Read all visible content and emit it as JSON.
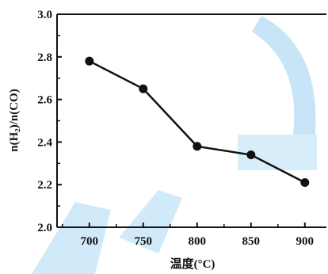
{
  "chart_data": {
    "type": "line",
    "title": "",
    "xlabel": "温度(°C)",
    "ylabel": "n(H₂)/n(CO)",
    "x": [
      700,
      750,
      800,
      850,
      900
    ],
    "series": [
      {
        "values": [
          2.78,
          2.65,
          2.38,
          2.34,
          2.21
        ]
      }
    ],
    "xlim": [
      670,
      920
    ],
    "ylim": [
      2.0,
      3.0
    ],
    "xticks": [
      "700",
      "750",
      "800",
      "850",
      "900"
    ],
    "yticks": [
      "2.0",
      "2.2",
      "2.4",
      "2.6",
      "2.8",
      "3.0"
    ],
    "grid": false,
    "line_color": "#111111",
    "marker_color": "#111111"
  }
}
